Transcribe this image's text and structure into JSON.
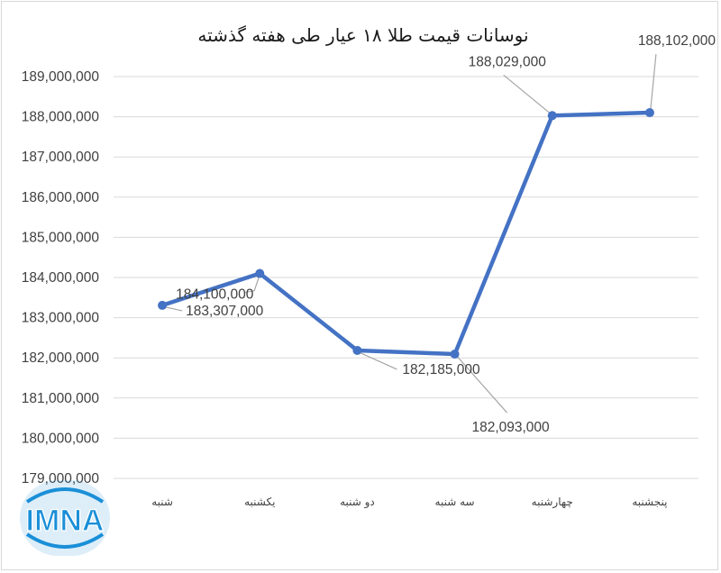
{
  "chart_data": {
    "type": "line",
    "title": "نوسانات قیمت طلا ۱۸ عیار طی هفته گذشته",
    "categories": [
      "شنبه",
      "یکشنبه",
      "دو شنبه",
      "سه شنبه",
      "چهارشنبه",
      "پنجشنبه"
    ],
    "series": [
      {
        "values": [
          183307000,
          184100000,
          182185000,
          182093000,
          188029000,
          188102000
        ]
      }
    ],
    "data_labels": [
      "183,307,000",
      "184,100,000",
      "182,185,000",
      "182,093,000",
      "188,029,000",
      "188,102,000"
    ],
    "y_ticks": [
      "179,000,000",
      "180,000,000",
      "181,000,000",
      "182,000,000",
      "183,000,000",
      "184,000,000",
      "185,000,000",
      "186,000,000",
      "187,000,000",
      "188,000,000",
      "189,000,000"
    ],
    "ylim": [
      179000000,
      189000000
    ],
    "grid": true,
    "legend": "none",
    "series_color": "#4472c4"
  },
  "logo": {
    "text": "IMNA",
    "color": "#1a8fd8"
  }
}
